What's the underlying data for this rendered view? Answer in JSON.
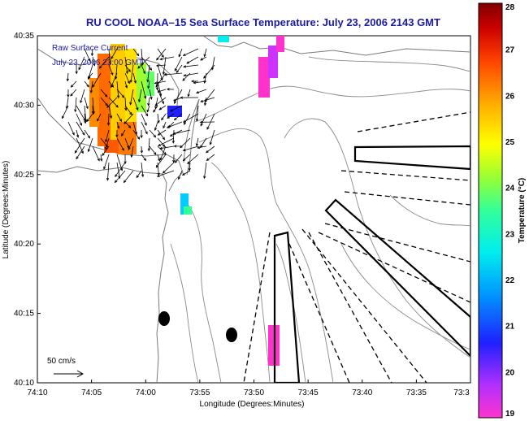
{
  "title": "RU COOL   NOAA–15  Sea Surface Temperature:  July 23, 2006 2143 GMT",
  "overlay": {
    "line1": "Raw Surface Current",
    "line2": "July 23, 2006 23:00 GMT"
  },
  "axes": {
    "xlabel": "Longitude (Degrees:Minutes)",
    "ylabel": "Latitude (Degrees:Minutes)",
    "xticks": [
      "74:10",
      "74:05",
      "74:00",
      "73:55",
      "73:50",
      "73:45",
      "73:40",
      "73:35",
      "73:3"
    ],
    "yticks": [
      "40:35",
      "40:30",
      "40:25",
      "40:20",
      "40:15",
      "40:10"
    ]
  },
  "scale_arrow": {
    "label": "50 cm/s"
  },
  "colorbar": {
    "label": "Temperature (°C)",
    "ticks": [
      "28",
      "27",
      "26",
      "25",
      "24",
      "23",
      "22",
      "21",
      "20",
      "19"
    ],
    "min": 19,
    "max": 28,
    "colors": [
      "#ff33cc",
      "#9933ff",
      "#2020ff",
      "#0099ff",
      "#00eeee",
      "#33ff99",
      "#99ff33",
      "#ffff00",
      "#ffaa00",
      "#ff4400",
      "#cc0000",
      "#800000"
    ]
  },
  "colors": {
    "title": "#1a1aa8",
    "note": "#1a1aa8",
    "contour": "#8a8a8a"
  }
}
